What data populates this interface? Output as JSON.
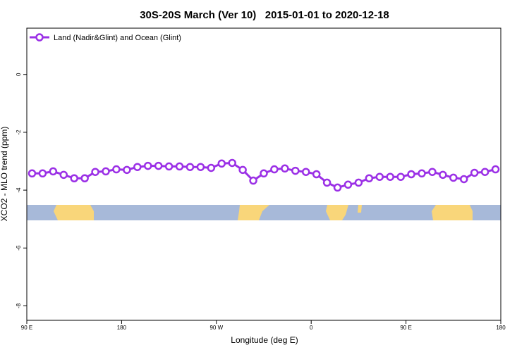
{
  "chart_data": {
    "type": "line",
    "title": "30S-20S March (Ver 10)   2015-01-01 to 2020-12-18",
    "x_label": "Longitude (deg E)",
    "y_label": "XCO2 - MLO trend (ppm)",
    "x": [
      95,
      105,
      115,
      125,
      135,
      145,
      155,
      165,
      175,
      185,
      195,
      205,
      215,
      225,
      235,
      245,
      255,
      265,
      275,
      285,
      295,
      305,
      315,
      325,
      335,
      345,
      355,
      365,
      375,
      385,
      395,
      405,
      415,
      425,
      435,
      445,
      455,
      465,
      475,
      485,
      495,
      505,
      515,
      525,
      535
    ],
    "series": [
      {
        "name": "Land (Nadir&Glint) and Ocean (Glint)",
        "color": "#9b30e6",
        "values": [
          -3.42,
          -3.42,
          -3.35,
          -3.47,
          -3.59,
          -3.59,
          -3.37,
          -3.35,
          -3.28,
          -3.3,
          -3.2,
          -3.16,
          -3.16,
          -3.18,
          -3.18,
          -3.2,
          -3.2,
          -3.23,
          -3.08,
          -3.06,
          -3.3,
          -3.67,
          -3.42,
          -3.28,
          -3.25,
          -3.33,
          -3.37,
          -3.45,
          -3.74,
          -3.91,
          -3.81,
          -3.74,
          -3.59,
          -3.54,
          -3.54,
          -3.54,
          -3.45,
          -3.42,
          -3.37,
          -3.47,
          -3.57,
          -3.62,
          -3.4,
          -3.37,
          -3.28
        ]
      }
    ],
    "xlim": [
      90,
      540
    ],
    "xticks": [
      {
        "value": 90,
        "label": "90 E"
      },
      {
        "value": 180,
        "label": "180"
      },
      {
        "value": 270,
        "label": "90 W"
      },
      {
        "value": 360,
        "label": "0"
      },
      {
        "value": 450,
        "label": "90 E"
      },
      {
        "value": 540,
        "label": "180"
      }
    ],
    "ylim": [
      -8.5,
      1.6
    ],
    "yticks": [
      0,
      -2,
      -4,
      -6,
      -8
    ],
    "legend": "top-left"
  }
}
